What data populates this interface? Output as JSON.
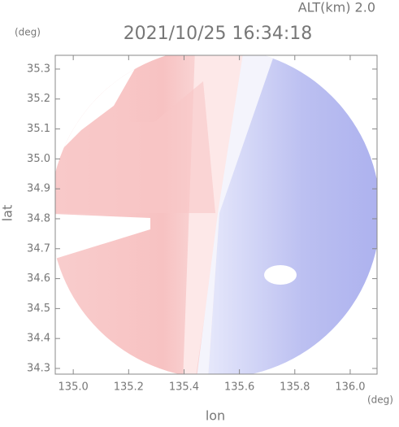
{
  "chart_data": {
    "type": "image",
    "title": "2021/10/25 16:34:18",
    "annotation": "ALT(km) 2.0",
    "x_label": "lon",
    "y_label": "lat",
    "x_unit": "(deg)",
    "y_unit": "(deg)",
    "xlim": [
      134.935,
      136.097
    ],
    "xticks": [
      {
        "value": 135.0,
        "label": "135.0"
      },
      135.2,
      135.4,
      135.6,
      135.8,
      {
        "value": 136.0,
        "label": "136.0"
      }
    ],
    "ylim": [
      34.281,
      35.346
    ],
    "yticks": [
      34.3,
      34.4,
      34.5,
      34.6,
      34.7,
      34.8,
      34.9,
      {
        "value": 35.0,
        "label": "35.0"
      },
      35.1,
      35.2,
      35.3
    ]
  }
}
